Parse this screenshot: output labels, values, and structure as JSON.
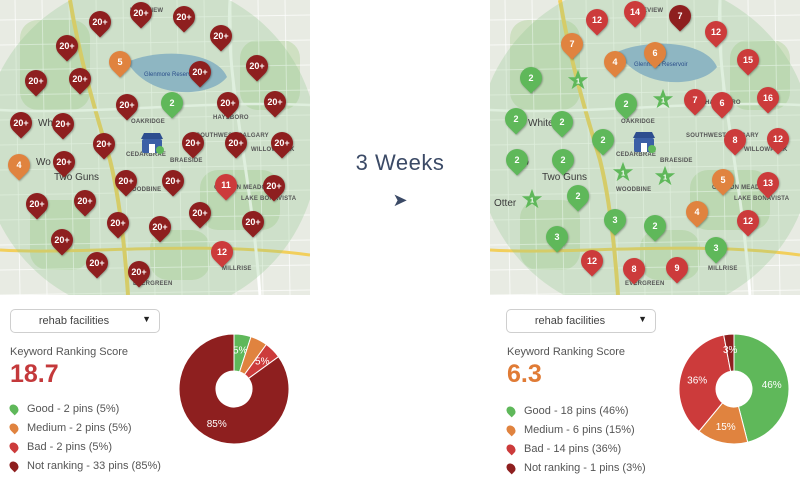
{
  "colors": {
    "good": "#5fb85a",
    "medium": "#e0833f",
    "bad": "#cc3b3b",
    "not_ranking": "#8e1f1f"
  },
  "maps": [
    {
      "place_labels": [
        "Lakeview",
        "White",
        "Wo",
        "Two Guns",
        "Oakridge",
        "Cedarbrae",
        "Braeside",
        "Woodbine",
        "Millrise",
        "Evergreen",
        "Willowpark",
        "Lake Bonavista",
        "Haysboro",
        "Canyon Meadows",
        "Southwest Calgary"
      ],
      "reservoir_label": "Glenmore Reservoir",
      "business_icon": "storefront-icon",
      "pins": [
        {
          "t": "20+",
          "c": "not_ranking"
        },
        {
          "t": "20+",
          "c": "not_ranking"
        },
        {
          "t": "20+",
          "c": "not_ranking"
        },
        {
          "t": "20+",
          "c": "not_ranking"
        },
        {
          "t": "20+",
          "c": "not_ranking"
        },
        {
          "t": "5",
          "c": "medium"
        },
        {
          "t": "20+",
          "c": "not_ranking"
        },
        {
          "t": "20+",
          "c": "not_ranking"
        },
        {
          "t": "20+",
          "c": "not_ranking"
        },
        {
          "t": "20+",
          "c": "not_ranking"
        },
        {
          "t": "20+",
          "c": "not_ranking"
        },
        {
          "t": "2",
          "c": "good"
        },
        {
          "t": "20+",
          "c": "not_ranking"
        },
        {
          "t": "20+",
          "c": "not_ranking"
        },
        {
          "t": "20+",
          "c": "not_ranking"
        },
        {
          "t": "20+",
          "c": "not_ranking"
        },
        {
          "t": "20+",
          "c": "not_ranking"
        },
        {
          "t": "20+",
          "c": "not_ranking"
        },
        {
          "t": "20+",
          "c": "not_ranking"
        },
        {
          "t": "20+",
          "c": "not_ranking"
        },
        {
          "t": "4",
          "c": "medium"
        },
        {
          "t": "20+",
          "c": "not_ranking"
        },
        {
          "t": "20+",
          "c": "not_ranking"
        },
        {
          "t": "20+",
          "c": "not_ranking"
        },
        {
          "t": "11",
          "c": "bad"
        },
        {
          "t": "20+",
          "c": "not_ranking"
        },
        {
          "t": "20+",
          "c": "not_ranking"
        },
        {
          "t": "20+",
          "c": "not_ranking"
        },
        {
          "t": "20+",
          "c": "not_ranking"
        },
        {
          "t": "20+",
          "c": "not_ranking"
        },
        {
          "t": "20+",
          "c": "not_ranking"
        },
        {
          "t": "20+",
          "c": "not_ranking"
        },
        {
          "t": "12",
          "c": "bad"
        },
        {
          "t": "20+",
          "c": "not_ranking"
        },
        {
          "t": "20+",
          "c": "not_ranking"
        },
        {
          "t": "20+",
          "c": "not_ranking"
        }
      ]
    },
    {
      "place_labels": [
        "Lakeview",
        "White",
        "Wo",
        "Two Guns",
        "Otter",
        "Oakridge",
        "Cedarbrae",
        "Braeside",
        "Woodbine",
        "Millrise",
        "Evergreen",
        "Willowpark",
        "Lake Bonavista",
        "Haysboro",
        "Canyon Meadows",
        "Southwest Calgary"
      ],
      "reservoir_label": "Glenmore Reservoir",
      "business_icon": "storefront-icon",
      "pins": [
        {
          "t": "12",
          "c": "bad"
        },
        {
          "t": "14",
          "c": "bad"
        },
        {
          "t": "7",
          "c": "not_ranking"
        },
        {
          "t": "7",
          "c": "medium"
        },
        {
          "t": "12",
          "c": "bad"
        },
        {
          "t": "6",
          "c": "medium"
        },
        {
          "t": "4",
          "c": "medium"
        },
        {
          "t": "15",
          "c": "bad"
        },
        {
          "t": "1",
          "c": "good",
          "star": true
        },
        {
          "t": "1",
          "c": "good",
          "star": true
        },
        {
          "t": "2",
          "c": "good"
        },
        {
          "t": "2",
          "c": "good"
        },
        {
          "t": "7",
          "c": "bad"
        },
        {
          "t": "6",
          "c": "bad"
        },
        {
          "t": "16",
          "c": "bad"
        },
        {
          "t": "2",
          "c": "good"
        },
        {
          "t": "2",
          "c": "good"
        },
        {
          "t": "2",
          "c": "good"
        },
        {
          "t": "8",
          "c": "bad"
        },
        {
          "t": "12",
          "c": "bad"
        },
        {
          "t": "2",
          "c": "good"
        },
        {
          "t": "2",
          "c": "good"
        },
        {
          "t": "1",
          "c": "good",
          "star": true
        },
        {
          "t": "1",
          "c": "good",
          "star": true
        },
        {
          "t": "5",
          "c": "medium"
        },
        {
          "t": "13",
          "c": "bad"
        },
        {
          "t": "1",
          "c": "good",
          "star": true
        },
        {
          "t": "2",
          "c": "good"
        },
        {
          "t": "3",
          "c": "good"
        },
        {
          "t": "2",
          "c": "good"
        },
        {
          "t": "4",
          "c": "medium"
        },
        {
          "t": "12",
          "c": "bad"
        },
        {
          "t": "3",
          "c": "good"
        },
        {
          "t": "3",
          "c": "good"
        },
        {
          "t": "12",
          "c": "bad"
        },
        {
          "t": "8",
          "c": "bad"
        },
        {
          "t": "9",
          "c": "bad"
        }
      ]
    }
  ],
  "transition": {
    "label": "3 Weeks",
    "arrow": "➤"
  },
  "panels": [
    {
      "keyword": "rehab facilities",
      "score_label": "Keyword Ranking Score",
      "score": "18.7",
      "score_color": "#c4393b",
      "legend": [
        {
          "key": "good",
          "text": "Good - 2 pins (5%)"
        },
        {
          "key": "medium",
          "text": "Medium - 2 pins (5%)"
        },
        {
          "key": "bad",
          "text": "Bad - 2 pins (5%)"
        },
        {
          "key": "not_ranking",
          "text": "Not ranking - 33 pins (85%)"
        }
      ],
      "chart_data": {
        "type": "pie",
        "donut": true,
        "categories": [
          "Good",
          "Medium",
          "Bad",
          "Not ranking"
        ],
        "values": [
          5,
          5,
          5,
          85
        ],
        "labels": [
          "5%",
          "",
          "5%",
          "85%"
        ]
      }
    },
    {
      "keyword": "rehab facilities",
      "score_label": "Keyword Ranking Score",
      "score": "6.3",
      "score_color": "#e07b35",
      "legend": [
        {
          "key": "good",
          "text": "Good - 18 pins (46%)"
        },
        {
          "key": "medium",
          "text": "Medium - 6 pins (15%)"
        },
        {
          "key": "bad",
          "text": "Bad - 14 pins (36%)"
        },
        {
          "key": "not_ranking",
          "text": "Not ranking - 1 pins (3%)"
        }
      ],
      "chart_data": {
        "type": "pie",
        "donut": true,
        "categories": [
          "Good",
          "Medium",
          "Bad",
          "Not ranking"
        ],
        "values": [
          46,
          15,
          36,
          3
        ],
        "labels": [
          "46%",
          "15%",
          "36%",
          "3%"
        ]
      }
    }
  ]
}
